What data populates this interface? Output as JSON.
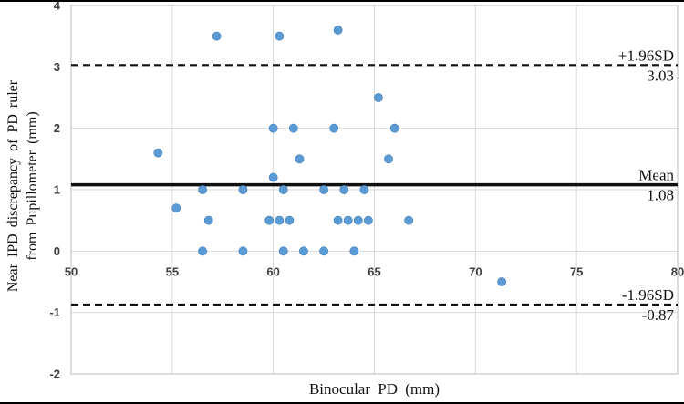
{
  "chart_data": {
    "type": "scatter",
    "title": "",
    "xlabel": "Binocular PD (mm)",
    "ylabel": "Near IPD discrepancy of PD ruler from Pupillometer (mm)",
    "ylabel_lines": [
      "Near IPD discrepancy of PD ruler",
      "from Pupillometer (mm)"
    ],
    "xlim": [
      50,
      80
    ],
    "ylim": [
      -2,
      4
    ],
    "xticks": [
      50,
      55,
      60,
      65,
      70,
      75,
      80
    ],
    "yticks": [
      -2,
      -1,
      0,
      1,
      2,
      3,
      4
    ],
    "grid": true,
    "legend": "none",
    "point_color": "#5B9BD5",
    "point_edge_color": "#3f7cb8",
    "gridline_color": "#d9d9d9",
    "border_color": "#c6c6c6",
    "tick_label_color": "#3f3f3f",
    "reference_lines": [
      {
        "id": "upper-loa",
        "value": 3.03,
        "style": "dashed",
        "label": "+1.96SD",
        "value_label": "3.03"
      },
      {
        "id": "mean",
        "value": 1.08,
        "style": "solid",
        "label": "Mean",
        "value_label": "1.08"
      },
      {
        "id": "lower-loa",
        "value": -0.87,
        "style": "dashed",
        "label": "-1.96SD",
        "value_label": "-0.87"
      }
    ],
    "points": [
      [
        54.3,
        1.6
      ],
      [
        55.2,
        0.7
      ],
      [
        56.5,
        0.0
      ],
      [
        56.5,
        1.0
      ],
      [
        56.8,
        0.5
      ],
      [
        57.2,
        3.5
      ],
      [
        58.5,
        0.0
      ],
      [
        58.5,
        1.0
      ],
      [
        59.8,
        0.5
      ],
      [
        60.0,
        1.2
      ],
      [
        60.0,
        2.0
      ],
      [
        60.3,
        0.5
      ],
      [
        60.3,
        3.5
      ],
      [
        60.5,
        0.0
      ],
      [
        60.5,
        1.0
      ],
      [
        60.8,
        0.5
      ],
      [
        61.0,
        2.0
      ],
      [
        61.3,
        1.5
      ],
      [
        61.5,
        0.0
      ],
      [
        62.5,
        0.0
      ],
      [
        62.5,
        1.0
      ],
      [
        63.0,
        2.0
      ],
      [
        63.2,
        0.5
      ],
      [
        63.2,
        3.6
      ],
      [
        63.5,
        1.0
      ],
      [
        63.7,
        0.5
      ],
      [
        64.0,
        0.0
      ],
      [
        64.2,
        0.5
      ],
      [
        64.5,
        1.0
      ],
      [
        64.7,
        0.5
      ],
      [
        65.2,
        2.5
      ],
      [
        65.7,
        1.5
      ],
      [
        66.0,
        2.0
      ],
      [
        66.7,
        0.5
      ],
      [
        71.3,
        -0.5
      ]
    ]
  }
}
